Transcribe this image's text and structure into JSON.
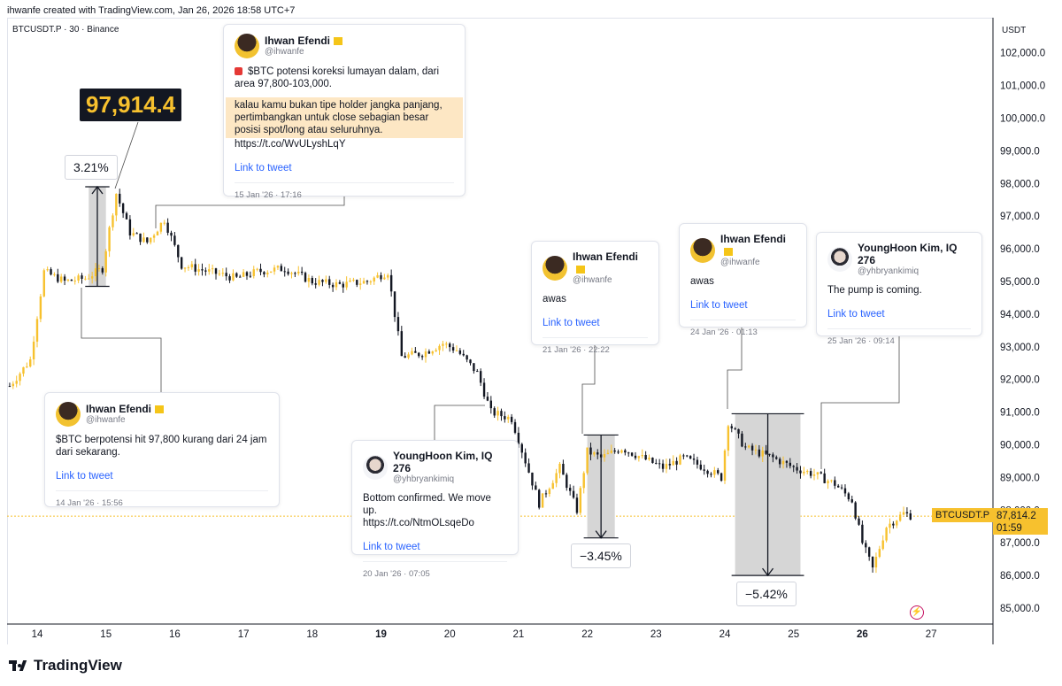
{
  "header": {
    "credit": "ihwanfe created with TradingView.com, Jan 26, 2026 18:58 UTC+7",
    "symbol": "BTCUSDT.P · 30 · Binance"
  },
  "brand": "TradingView",
  "colors": {
    "up": "#f7c12e",
    "down": "#131722",
    "measure": "#d9d9d9",
    "link": "#2962ff"
  },
  "chart_data": {
    "type": "candlestick",
    "currency_label": "USDT",
    "ylim": [
      84500,
      103000
    ],
    "y_ticks": [
      "102,000.0",
      "101,000.0",
      "100,000.0",
      "99,000.0",
      "98,000.0",
      "97,000.0",
      "96,000.0",
      "95,000.0",
      "94,000.0",
      "93,000.0",
      "92,000.0",
      "91,000.0",
      "90,000.0",
      "89,000.0",
      "88,000.0",
      "87,000.0",
      "86,000.0",
      "85,000.0"
    ],
    "x_ticks": [
      "14",
      "15",
      "16",
      "17",
      "18",
      "19",
      "20",
      "21",
      "22",
      "23",
      "24",
      "25",
      "26",
      "27"
    ],
    "bold_x_ticks": [
      "19",
      "26"
    ],
    "price_path": [
      {
        "x": "13.6",
        "y": 91800
      },
      {
        "x": "13.9",
        "y": 92600
      },
      {
        "x": "14.1",
        "y": 95300
      },
      {
        "x": "14.4",
        "y": 95000
      },
      {
        "x": "14.7",
        "y": 95100
      },
      {
        "x": "14.95",
        "y": 95400
      },
      {
        "x": "15.05",
        "y": 96600
      },
      {
        "x": "15.15",
        "y": 97700
      },
      {
        "x": "15.35",
        "y": 96500
      },
      {
        "x": "15.6",
        "y": 96200
      },
      {
        "x": "15.85",
        "y": 96900
      },
      {
        "x": "16.1",
        "y": 95500
      },
      {
        "x": "16.5",
        "y": 95300
      },
      {
        "x": "16.9",
        "y": 95100
      },
      {
        "x": "17.2",
        "y": 95300
      },
      {
        "x": "17.6",
        "y": 95400
      },
      {
        "x": "18.0",
        "y": 95000
      },
      {
        "x": "18.4",
        "y": 94900
      },
      {
        "x": "18.8",
        "y": 95000
      },
      {
        "x": "19.1",
        "y": 95300
      },
      {
        "x": "19.3",
        "y": 92700
      },
      {
        "x": "19.6",
        "y": 92800
      },
      {
        "x": "19.9",
        "y": 93100
      },
      {
        "x": "20.1",
        "y": 92900
      },
      {
        "x": "20.4",
        "y": 92200
      },
      {
        "x": "20.6",
        "y": 91000
      },
      {
        "x": "20.9",
        "y": 90800
      },
      {
        "x": "21.1",
        "y": 89500
      },
      {
        "x": "21.3",
        "y": 88200
      },
      {
        "x": "21.6",
        "y": 89300
      },
      {
        "x": "21.85",
        "y": 88000
      },
      {
        "x": "22.0",
        "y": 89800
      },
      {
        "x": "22.2",
        "y": 89600
      },
      {
        "x": "22.5",
        "y": 89900
      },
      {
        "x": "22.8",
        "y": 89600
      },
      {
        "x": "23.1",
        "y": 89300
      },
      {
        "x": "23.4",
        "y": 89600
      },
      {
        "x": "23.7",
        "y": 89300
      },
      {
        "x": "23.95",
        "y": 89000
      },
      {
        "x": "24.05",
        "y": 90700
      },
      {
        "x": "24.3",
        "y": 89900
      },
      {
        "x": "24.7",
        "y": 89600
      },
      {
        "x": "25.0",
        "y": 89300
      },
      {
        "x": "25.3",
        "y": 89100
      },
      {
        "x": "25.6",
        "y": 88800
      },
      {
        "x": "25.85",
        "y": 88300
      },
      {
        "x": "26.0",
        "y": 87000
      },
      {
        "x": "26.15",
        "y": 86200
      },
      {
        "x": "26.35",
        "y": 87500
      },
      {
        "x": "26.6",
        "y": 87900
      },
      {
        "x": "26.75",
        "y": 87800
      }
    ],
    "last_price": {
      "symbol": "BTCUSDT.P",
      "price": "87,814.2",
      "countdown": "01:59",
      "value": 87814.2
    },
    "peak_label": "97,914.4",
    "measures": [
      {
        "label": "3.21%",
        "from_day": 14.75,
        "to_day": 15.0,
        "low": 94850,
        "high": 97900,
        "direction": "up"
      },
      {
        "label": "−3.45%",
        "from_day": 22.0,
        "to_day": 22.4,
        "low": 87150,
        "high": 90300,
        "direction": "down"
      },
      {
        "label": "−5.42%",
        "from_day": 24.15,
        "to_day": 25.1,
        "low": 86000,
        "high": 90950,
        "direction": "down"
      }
    ]
  },
  "tweets": [
    {
      "name": "Ihwan Efendi",
      "handle": "@ihwanfe",
      "text": "$BTC potensi koreksi lumayan dalam, dari area 97,800-103,000.",
      "highlight": "kalau kamu bukan tipe holder jangka panjang, pertimbangkan untuk close sebagian besar posisi spot/long atau seluruhnya.",
      "url": "https://t.co/WvULyshLqY",
      "link": "Link to tweet",
      "date": "15 Jan '26 · 17:16"
    },
    {
      "name": "Ihwan Efendi",
      "handle": "@ihwanfe",
      "text": "$BTC berpotensi hit 97,800 kurang dari 24 jam dari sekarang.",
      "link": "Link to tweet",
      "date": "14 Jan '26 · 15:56"
    },
    {
      "name": "YoungHoon Kim, IQ 276",
      "handle": "@yhbryankimiq",
      "text": "Bottom confirmed. We move up.",
      "url": "https://t.co/NtmOLsqeDo",
      "link": "Link to tweet",
      "date": "20 Jan '26 · 07:05"
    },
    {
      "name": "Ihwan Efendi",
      "handle": "@ihwanfe",
      "text": "awas",
      "link": "Link to tweet",
      "date": "21 Jan '26 · 22:22"
    },
    {
      "name": "Ihwan Efendi",
      "handle": "@ihwanfe",
      "text": "awas",
      "link": "Link to tweet",
      "date": "24 Jan '26 · 01:13"
    },
    {
      "name": "YoungHoon Kim, IQ 276",
      "handle": "@yhbryankimiq",
      "text": "The pump is coming.",
      "link": "Link to tweet",
      "date": "25 Jan '26 · 09:14"
    }
  ]
}
